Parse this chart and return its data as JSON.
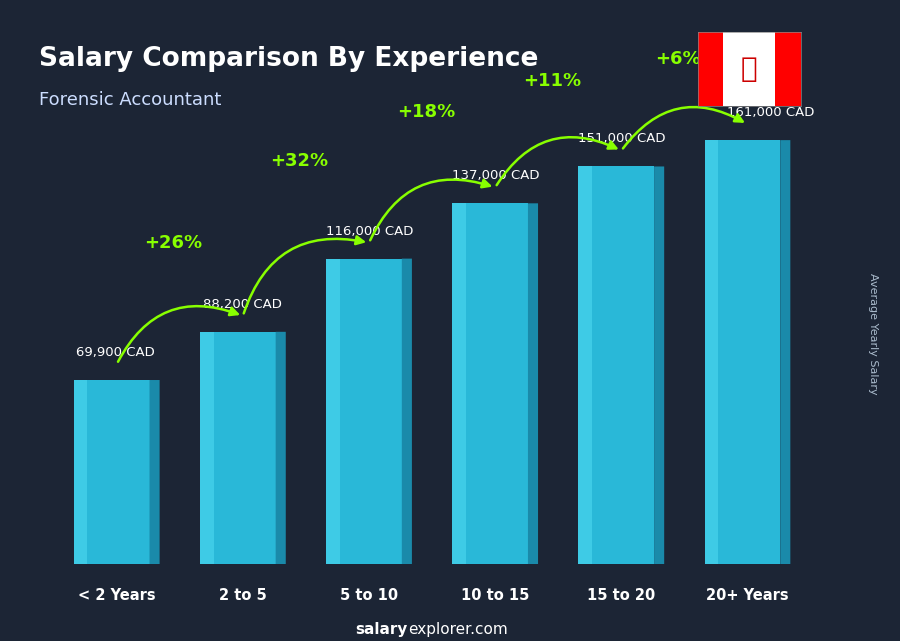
{
  "title": "Salary Comparison By Experience",
  "subtitle": "Forensic Accountant",
  "categories": [
    "< 2 Years",
    "2 to 5",
    "5 to 10",
    "10 to 15",
    "15 to 20",
    "20+ Years"
  ],
  "values": [
    69900,
    88200,
    116000,
    137000,
    151000,
    161000
  ],
  "labels": [
    "69,900 CAD",
    "88,200 CAD",
    "116,000 CAD",
    "137,000 CAD",
    "151,000 CAD",
    "161,000 CAD"
  ],
  "pct_changes": [
    "+26%",
    "+32%",
    "+18%",
    "+11%",
    "+6%"
  ],
  "bar_color_main": "#29b8d8",
  "bar_color_light": "#4dd8f0",
  "bar_color_dark": "#1a8aaa",
  "bar_color_top": "#50dff5",
  "bg_color": "#1c2535",
  "title_color": "#ffffff",
  "subtitle_color": "#ffffff",
  "label_color": "#ffffff",
  "pct_color": "#88ff00",
  "footer_salary_color": "#ffffff",
  "footer_explorer_color": "#ffffff",
  "ylabel_text": "Average Yearly Salary",
  "footer_bold": "salary",
  "footer_rest": "explorer.com",
  "ylim": [
    0,
    185000
  ],
  "bar_width": 0.6,
  "bar_depth": 0.08
}
